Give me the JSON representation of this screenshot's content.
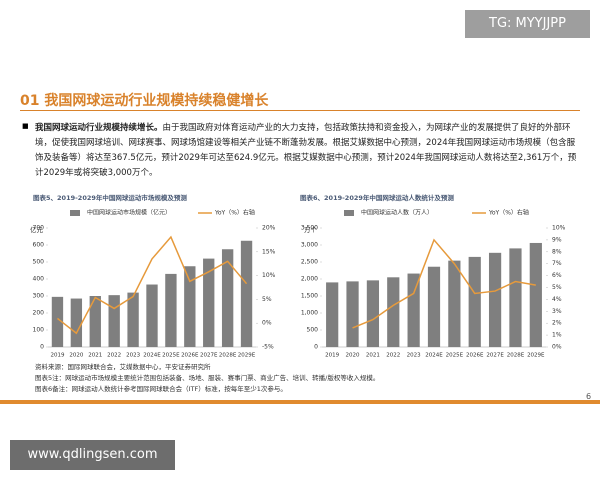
{
  "header": {
    "watermark": "TG: MYYJJPP"
  },
  "section_title": "01 我国网球运动行业规模持续稳健增长",
  "bullet": {
    "lead": "我国网球运动行业规模持续增长。",
    "body": "由于我国政府对体育运动产业的大力支持，包括政策扶持和资金投入，为网球产业的发展提供了良好的外部环境，促使我国网球培训、网球赛事、网球场馆建设等相关产业链不断蓬勃发展。根据艾媒数据中心预测，2024年我国网球运动市场规模（包含服饰及装备等）将达至367.5亿元，预计2029年可达至624.9亿元。根据艾媒数据中心预测，预计2024年我国网球运动人数将达至2,361万个，预计2029年或将突破3,000万个。"
  },
  "chart_data": [
    {
      "type": "bar",
      "title": "图表5、2019-2029年中国网球运动市场规模及预测",
      "y_label": "亿元",
      "categories": [
        "2019",
        "2020",
        "2021",
        "2022",
        "2023",
        "2024E",
        "2025E",
        "2026E",
        "2027E",
        "2028E",
        "2029E"
      ],
      "series": [
        {
          "name": "中国网球运动市场规模（亿元）",
          "type": "bar",
          "color": "#7f7f7f",
          "values": [
            295,
            285,
            300,
            305,
            320,
            367.5,
            430,
            475,
            520,
            575,
            624.9
          ]
        },
        {
          "name": "YoY（%）右轴",
          "type": "line",
          "axis": "y2",
          "color": "#e69a3c",
          "values": [
            1.0,
            -2.1,
            5.4,
            3.1,
            5.6,
            13.5,
            18.1,
            8.8,
            10.8,
            13.0,
            8.3
          ]
        }
      ],
      "ylim": [
        0,
        700
      ],
      "yticks": [
        0,
        100,
        200,
        300,
        400,
        500,
        600,
        700
      ],
      "y2lim": [
        -5,
        20
      ],
      "y2ticks": [
        {
          "value": -5,
          "label": "-5%"
        },
        {
          "value": 0,
          "label": "0%"
        },
        {
          "value": 5,
          "label": "5%"
        },
        {
          "value": 10,
          "label": "10%"
        },
        {
          "value": 15,
          "label": "15%"
        },
        {
          "value": 20,
          "label": "20%"
        }
      ],
      "grid": false
    },
    {
      "type": "bar",
      "title": "图表6、2019-2029年中国网球运动人数统计及预测",
      "y_label": "万个",
      "categories": [
        "2019",
        "2020",
        "2021",
        "2022",
        "2023",
        "2024E",
        "2025E",
        "2026E",
        "2027E",
        "2028E",
        "2029E"
      ],
      "series": [
        {
          "name": "中国网球运动人数（万人）",
          "type": "bar",
          "color": "#7f7f7f",
          "values": [
            1900,
            1930,
            1960,
            2050,
            2160,
            2361,
            2540,
            2650,
            2770,
            2900,
            3060
          ]
        },
        {
          "name": "YoY（%）右轴",
          "type": "line",
          "axis": "y2",
          "color": "#e69a3c",
          "values": [
            null,
            1.6,
            2.3,
            3.5,
            4.5,
            9.0,
            7.0,
            4.5,
            4.7,
            5.5,
            5.2
          ]
        }
      ],
      "ylim": [
        0,
        3500
      ],
      "yticks": [
        0,
        500,
        {
          "value": 1000,
          "label": "1,000"
        },
        {
          "value": 1500,
          "label": "1,500"
        },
        {
          "value": 2000,
          "label": "2,000"
        },
        {
          "value": 2500,
          "label": "2,500"
        },
        {
          "value": 3000,
          "label": "3,000"
        },
        {
          "value": 3500,
          "label": "3,500"
        }
      ],
      "y2lim": [
        0,
        10
      ],
      "y2ticks": [
        {
          "value": 0,
          "label": "0%"
        },
        {
          "value": 1,
          "label": "1%"
        },
        {
          "value": 2,
          "label": "2%"
        },
        {
          "value": 3,
          "label": "3%"
        },
        {
          "value": 4,
          "label": "4%"
        },
        {
          "value": 5,
          "label": "5%"
        },
        {
          "value": 6,
          "label": "6%"
        },
        {
          "value": 7,
          "label": "7%"
        },
        {
          "value": 8,
          "label": "8%"
        },
        {
          "value": 9,
          "label": "9%"
        },
        {
          "value": 10,
          "label": "10%"
        }
      ],
      "grid": false
    }
  ],
  "notes": [
    "资料来源：国际网球联合会，艾媒数据中心，平安证券研究所",
    "图表5注：网球运动市场规模主要统计范围包括装备、场地、服装、赛事门票、商业广告、培训、转播/版权等收入规模。",
    "图表6备注：网球运动人数统计参考国际网球联合会（ITF）标准，按每年至少1次参与。"
  ],
  "page_number": "6",
  "footer_watermark": "www.qdlingsen.com"
}
